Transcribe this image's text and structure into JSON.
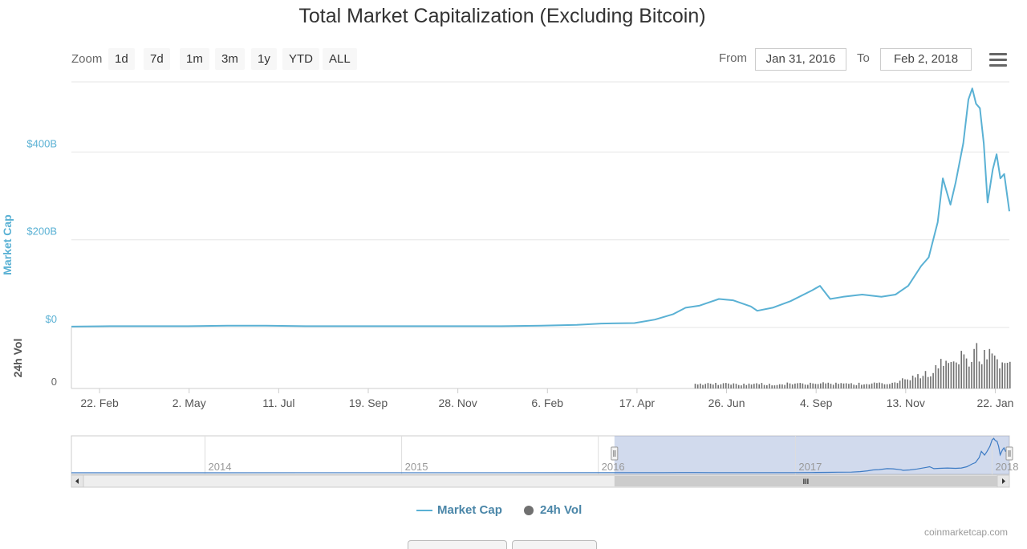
{
  "chart_data": {
    "type": "line",
    "title": "Total Market Capitalization (Excluding Bitcoin)",
    "zoom": {
      "label": "Zoom",
      "buttons": [
        "1d",
        "7d",
        "1m",
        "3m",
        "1y",
        "YTD",
        "ALL"
      ]
    },
    "range": {
      "from_label": "From",
      "from_value": "Jan 31, 2016",
      "to_label": "To",
      "to_value": "Feb 2, 2018"
    },
    "yaxis_main": {
      "label": "Market Cap",
      "ticks": [
        "$400B",
        "$200B",
        "$0"
      ],
      "tick_values": [
        400,
        200,
        0
      ],
      "range": [
        0,
        560
      ],
      "unit": "billion USD"
    },
    "yaxis_volume": {
      "label": "24h Vol",
      "ticks": [
        "0"
      ]
    },
    "xaxis": {
      "range": [
        "2016-01-31",
        "2018-02-02"
      ],
      "ticks": [
        "22. Feb",
        "2. May",
        "11. Jul",
        "19. Sep",
        "28. Nov",
        "6. Feb",
        "17. Apr",
        "26. Jun",
        "4. Sep",
        "13. Nov",
        "22. Jan"
      ],
      "tick_dates": [
        "2016-02-22",
        "2016-05-02",
        "2016-07-11",
        "2016-09-19",
        "2016-11-28",
        "2017-02-06",
        "2017-04-17",
        "2017-06-26",
        "2017-09-04",
        "2017-11-13",
        "2018-01-22"
      ]
    },
    "series": [
      {
        "name": "Market Cap",
        "color": "#5ab1d4",
        "points": [
          [
            "2016-01-31",
            2
          ],
          [
            "2016-03-01",
            3
          ],
          [
            "2016-04-01",
            3
          ],
          [
            "2016-05-01",
            3
          ],
          [
            "2016-06-01",
            4
          ],
          [
            "2016-07-01",
            4
          ],
          [
            "2016-08-01",
            3
          ],
          [
            "2016-09-01",
            3
          ],
          [
            "2016-10-01",
            3
          ],
          [
            "2016-11-01",
            3
          ],
          [
            "2016-12-01",
            3
          ],
          [
            "2017-01-01",
            3
          ],
          [
            "2017-02-01",
            4
          ],
          [
            "2017-03-01",
            6
          ],
          [
            "2017-03-20",
            9
          ],
          [
            "2017-04-15",
            10
          ],
          [
            "2017-05-01",
            18
          ],
          [
            "2017-05-15",
            30
          ],
          [
            "2017-05-25",
            45
          ],
          [
            "2017-06-05",
            50
          ],
          [
            "2017-06-20",
            65
          ],
          [
            "2017-07-01",
            62
          ],
          [
            "2017-07-15",
            48
          ],
          [
            "2017-07-20",
            38
          ],
          [
            "2017-08-01",
            45
          ],
          [
            "2017-08-15",
            60
          ],
          [
            "2017-09-01",
            85
          ],
          [
            "2017-09-07",
            95
          ],
          [
            "2017-09-15",
            65
          ],
          [
            "2017-09-25",
            70
          ],
          [
            "2017-10-10",
            75
          ],
          [
            "2017-10-25",
            70
          ],
          [
            "2017-11-05",
            75
          ],
          [
            "2017-11-15",
            95
          ],
          [
            "2017-11-25",
            140
          ],
          [
            "2017-12-01",
            160
          ],
          [
            "2017-12-08",
            240
          ],
          [
            "2017-12-12",
            340
          ],
          [
            "2017-12-18",
            280
          ],
          [
            "2017-12-22",
            330
          ],
          [
            "2017-12-28",
            420
          ],
          [
            "2018-01-01",
            520
          ],
          [
            "2018-01-04",
            545
          ],
          [
            "2018-01-07",
            510
          ],
          [
            "2018-01-10",
            500
          ],
          [
            "2018-01-13",
            420
          ],
          [
            "2018-01-16",
            285
          ],
          [
            "2018-01-20",
            360
          ],
          [
            "2018-01-23",
            395
          ],
          [
            "2018-01-26",
            340
          ],
          [
            "2018-01-29",
            350
          ],
          [
            "2018-02-02",
            265
          ]
        ]
      },
      {
        "name": "24h Vol",
        "color": "#707070",
        "points": [
          [
            "2017-06-01",
            0.1
          ],
          [
            "2017-07-01",
            0.1
          ],
          [
            "2017-08-01",
            0.1
          ],
          [
            "2017-09-01",
            0.12
          ],
          [
            "2017-10-01",
            0.1
          ],
          [
            "2017-11-01",
            0.12
          ],
          [
            "2017-11-15",
            0.25
          ],
          [
            "2017-12-01",
            0.35
          ],
          [
            "2017-12-10",
            0.6
          ],
          [
            "2017-12-20",
            0.7
          ],
          [
            "2018-01-01",
            0.65
          ],
          [
            "2018-01-05",
            0.9
          ],
          [
            "2018-01-12",
            0.7
          ],
          [
            "2018-01-17",
            0.8
          ],
          [
            "2018-01-25",
            0.5
          ],
          [
            "2018-02-02",
            0.55
          ]
        ]
      }
    ],
    "navigator": {
      "ticks": [
        "2014",
        "2015",
        "2016",
        "2017",
        "2018"
      ],
      "tick_dates": [
        "2014-01-01",
        "2015-01-01",
        "2016-01-01",
        "2017-01-01",
        "2018-01-01"
      ],
      "range": [
        "2013-04-28",
        "2018-02-02"
      ],
      "selected": [
        "2016-01-31",
        "2018-02-02"
      ],
      "scroll_grip": "III"
    },
    "legend": {
      "position": "bottom-center",
      "items": [
        {
          "label": "Market Cap",
          "marker": "line",
          "color": "#5ab1d4"
        },
        {
          "label": "24h Vol",
          "marker": "circle",
          "color": "#707070"
        }
      ]
    },
    "credit": "coinmarketcap.com"
  }
}
